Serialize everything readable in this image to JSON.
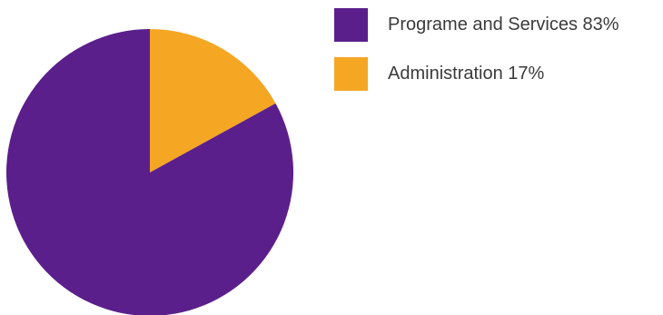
{
  "chart_data": {
    "type": "pie",
    "title": "",
    "legend_position": "top-right",
    "slices": [
      {
        "label": "Administration 17%",
        "value": 17,
        "color": "#F5A623"
      },
      {
        "label": "Programe and Services 83%",
        "value": 83,
        "color": "#5B1F8C"
      }
    ],
    "legend": [
      {
        "label": "Programe and Services 83%",
        "color": "#5B1F8C"
      },
      {
        "label": "Administration 17%",
        "color": "#F5A623"
      }
    ]
  }
}
